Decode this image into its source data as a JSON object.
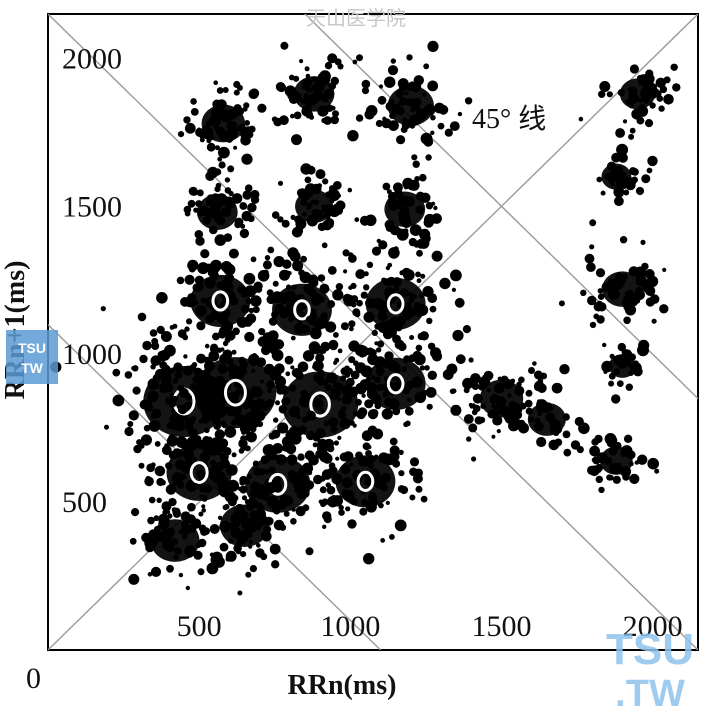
{
  "chart_data": {
    "type": "scatter",
    "title": "",
    "xlabel": "RRn(ms)",
    "ylabel": "RRn+1(ms)",
    "origin_label": "0",
    "xlim": [
      0,
      2150
    ],
    "ylim": [
      0,
      2150
    ],
    "xticks": [
      500,
      1000,
      1500,
      2000
    ],
    "yticks": [
      500,
      1000,
      1500,
      2000
    ],
    "x_tick_labels": [
      "500",
      "1000",
      "1500",
      "2000"
    ],
    "y_tick_labels": [
      "500",
      "1000",
      "1500",
      "2000"
    ],
    "grid": false,
    "legend": "none",
    "reference_line_label": "45° 线",
    "reference_lines": [
      {
        "type": "identity",
        "description": "45° line y = x"
      },
      {
        "type": "anti-diagonal",
        "x_plus_y": 1100
      },
      {
        "type": "anti-diagonal",
        "x_plus_y": 2150
      },
      {
        "type": "anti-diagonal",
        "x_plus_y": 3000
      }
    ],
    "point_color": "#000000",
    "clusters": [
      {
        "x": 580,
        "y": 1780,
        "n": 70,
        "spread": 80
      },
      {
        "x": 880,
        "y": 1880,
        "n": 60,
        "spread": 75
      },
      {
        "x": 1200,
        "y": 1840,
        "n": 70,
        "spread": 85
      },
      {
        "x": 1950,
        "y": 1880,
        "n": 50,
        "spread": 65
      },
      {
        "x": 560,
        "y": 1480,
        "n": 60,
        "spread": 75
      },
      {
        "x": 880,
        "y": 1500,
        "n": 60,
        "spread": 70
      },
      {
        "x": 1180,
        "y": 1490,
        "n": 60,
        "spread": 75
      },
      {
        "x": 1880,
        "y": 1600,
        "n": 40,
        "spread": 55
      },
      {
        "x": 570,
        "y": 1180,
        "n": 90,
        "spread": 110
      },
      {
        "x": 840,
        "y": 1150,
        "n": 90,
        "spread": 110
      },
      {
        "x": 1150,
        "y": 1170,
        "n": 100,
        "spread": 110
      },
      {
        "x": 1900,
        "y": 1220,
        "n": 60,
        "spread": 75
      },
      {
        "x": 1900,
        "y": 960,
        "n": 30,
        "spread": 50
      },
      {
        "x": 450,
        "y": 840,
        "n": 120,
        "spread": 150
      },
      {
        "x": 620,
        "y": 870,
        "n": 120,
        "spread": 150
      },
      {
        "x": 900,
        "y": 830,
        "n": 120,
        "spread": 140
      },
      {
        "x": 1150,
        "y": 900,
        "n": 80,
        "spread": 110
      },
      {
        "x": 1500,
        "y": 850,
        "n": 60,
        "spread": 80
      },
      {
        "x": 1650,
        "y": 780,
        "n": 40,
        "spread": 70
      },
      {
        "x": 1880,
        "y": 640,
        "n": 45,
        "spread": 60
      },
      {
        "x": 500,
        "y": 600,
        "n": 90,
        "spread": 120
      },
      {
        "x": 760,
        "y": 560,
        "n": 90,
        "spread": 120
      },
      {
        "x": 1050,
        "y": 570,
        "n": 80,
        "spread": 110
      },
      {
        "x": 420,
        "y": 370,
        "n": 60,
        "spread": 90
      },
      {
        "x": 650,
        "y": 420,
        "n": 60,
        "spread": 90
      }
    ]
  },
  "watermarks": {
    "top_text": "天山医学院",
    "badge_line1": "TSU",
    "badge_line2": "TW",
    "logo_line1": "TSU",
    "logo_line2": ".TW"
  }
}
